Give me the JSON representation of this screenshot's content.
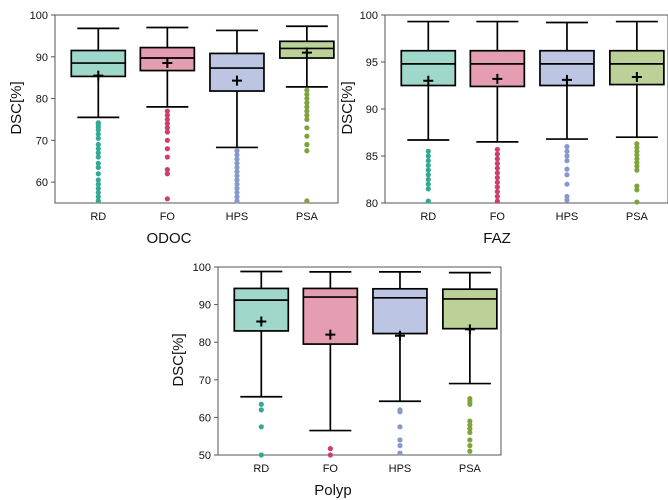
{
  "figure": {
    "colors": {
      "RD": "#9fd8cb",
      "FO": "#e59db1",
      "HPS": "#bcc6e2",
      "PSA": "#bcd198"
    },
    "outlier_colors": {
      "RD": "#32a994",
      "FO": "#cf3d6c",
      "HPS": "#8599cd",
      "PSA": "#7ea33a"
    }
  },
  "chart_data": [
    {
      "type": "box",
      "xlabel": "ODOC",
      "ylabel": "DSC[%]",
      "ylim": [
        55,
        100
      ],
      "yticks": [
        60,
        70,
        80,
        90,
        100
      ],
      "categories": [
        "RD",
        "FO",
        "HPS",
        "PSA"
      ],
      "boxes": [
        {
          "name": "RD",
          "whisker_low": 75.5,
          "q1": 85.3,
          "median": 88.5,
          "q3": 91.5,
          "whisker_high": 96.8,
          "mean": 85.5,
          "outliers": [
            74.2,
            73.8,
            73.2,
            72.5,
            71.5,
            70.5,
            69.0,
            68.0,
            67.0,
            66.0,
            64.5,
            63.5,
            62.0,
            60.5,
            59.5,
            58.5,
            57.5,
            56.5,
            55.5
          ]
        },
        {
          "name": "FO",
          "whisker_low": 78.0,
          "q1": 86.7,
          "median": 89.7,
          "q3": 92.2,
          "whisker_high": 97.0,
          "mean": 88.5,
          "outliers": [
            77.0,
            76.0,
            75.0,
            74.0,
            73.0,
            72.0,
            70.0,
            68.0,
            66.0,
            63.0,
            62.0,
            56.0
          ]
        },
        {
          "name": "HPS",
          "whisker_low": 68.3,
          "q1": 81.8,
          "median": 87.3,
          "q3": 90.8,
          "whisker_high": 96.3,
          "mean": 84.3,
          "outliers": [
            67.5,
            66.5,
            65.5,
            64.5,
            63.5,
            62.5,
            61.5,
            60.5,
            59.5,
            58.5,
            57.5,
            56.5,
            55.5
          ]
        },
        {
          "name": "PSA",
          "whisker_low": 82.8,
          "q1": 89.7,
          "median": 92.0,
          "q3": 93.7,
          "whisker_high": 97.3,
          "mean": 91.0,
          "outliers": [
            82.0,
            81.0,
            80.0,
            79.0,
            78.0,
            77.0,
            76.0,
            75.0,
            73.0,
            71.0,
            69.0,
            67.5,
            55.5
          ]
        }
      ]
    },
    {
      "type": "box",
      "xlabel": "FAZ",
      "ylabel": "DSC[%]",
      "ylim": [
        80,
        100
      ],
      "yticks": [
        80,
        85,
        90,
        95,
        100
      ],
      "categories": [
        "RD",
        "FO",
        "HPS",
        "PSA"
      ],
      "boxes": [
        {
          "name": "RD",
          "whisker_low": 86.7,
          "q1": 92.5,
          "median": 94.8,
          "q3": 96.2,
          "whisker_high": 99.3,
          "mean": 93.0,
          "outliers": [
            85.5,
            85.0,
            84.5,
            84.0,
            83.5,
            83.0,
            82.5,
            82.0,
            81.5,
            80.2
          ]
        },
        {
          "name": "FO",
          "whisker_low": 86.5,
          "q1": 92.4,
          "median": 94.8,
          "q3": 96.2,
          "whisker_high": 99.3,
          "mean": 93.2,
          "outliers": [
            85.7,
            85.2,
            84.7,
            84.2,
            83.7,
            83.2,
            82.7,
            82.2,
            81.7,
            81.2,
            80.7,
            80.2
          ]
        },
        {
          "name": "HPS",
          "whisker_low": 86.8,
          "q1": 92.5,
          "median": 94.8,
          "q3": 96.2,
          "whisker_high": 99.2,
          "mean": 93.1,
          "outliers": [
            86.0,
            85.5,
            85.0,
            84.5,
            83.6,
            83.0,
            82.0,
            80.7,
            80.3
          ]
        },
        {
          "name": "PSA",
          "whisker_low": 87.0,
          "q1": 92.6,
          "median": 94.8,
          "q3": 96.2,
          "whisker_high": 99.3,
          "mean": 93.4,
          "outliers": [
            86.3,
            85.9,
            85.5,
            85.1,
            84.7,
            84.3,
            83.9,
            83.5,
            81.8,
            81.4,
            80.1
          ]
        }
      ]
    },
    {
      "type": "box",
      "xlabel": "Polyp",
      "ylabel": "DSC[%]",
      "ylim": [
        50,
        100
      ],
      "yticks": [
        50,
        60,
        70,
        80,
        90,
        100
      ],
      "categories": [
        "RD",
        "FO",
        "HPS",
        "PSA"
      ],
      "boxes": [
        {
          "name": "RD",
          "whisker_low": 65.5,
          "q1": 83.0,
          "median": 91.2,
          "q3": 94.3,
          "whisker_high": 98.8,
          "mean": 85.5,
          "outliers": [
            63.5,
            62.0,
            57.5,
            50.0
          ]
        },
        {
          "name": "FO",
          "whisker_low": 56.5,
          "q1": 79.5,
          "median": 92.0,
          "q3": 94.3,
          "whisker_high": 98.7,
          "mean": 82.0,
          "outliers": [
            51.7,
            50.0
          ]
        },
        {
          "name": "HPS",
          "whisker_low": 64.3,
          "q1": 82.3,
          "median": 91.8,
          "q3": 94.2,
          "whisker_high": 98.7,
          "mean": 81.7,
          "outliers": [
            62.0,
            61.5,
            57.5,
            54.0,
            52.5,
            50.5
          ]
        },
        {
          "name": "PSA",
          "whisker_low": 69.0,
          "q1": 83.6,
          "median": 91.5,
          "q3": 94.1,
          "whisker_high": 98.5,
          "mean": 83.4,
          "outliers": [
            65.0,
            64.3,
            63.5,
            59.0,
            58.0,
            57.0,
            56.0,
            54.0,
            52.5,
            51.0
          ]
        }
      ]
    }
  ]
}
